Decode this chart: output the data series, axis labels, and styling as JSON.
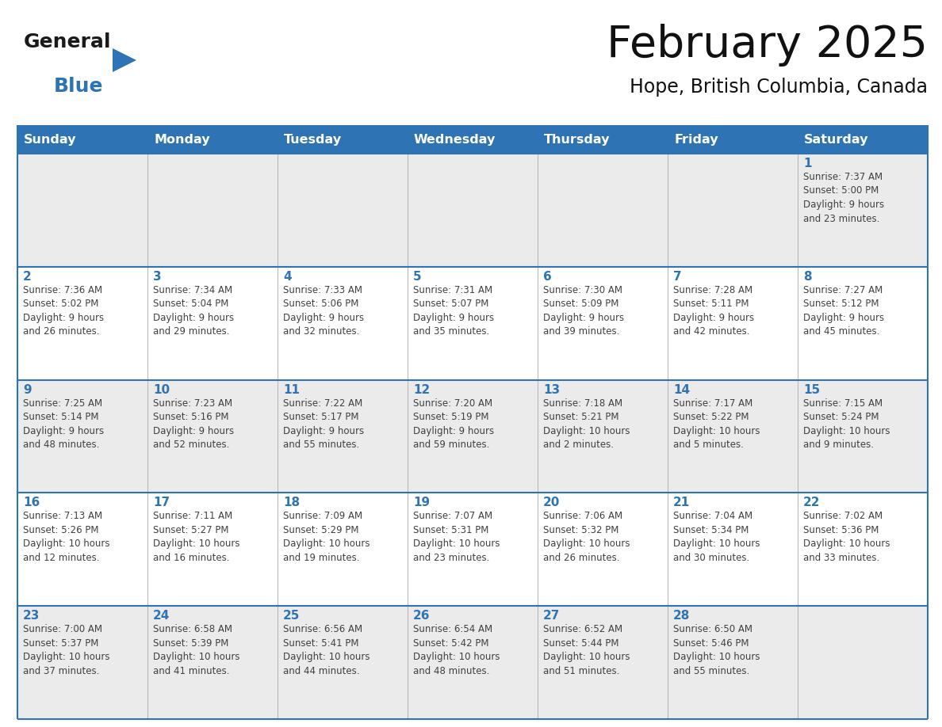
{
  "title": "February 2025",
  "subtitle": "Hope, British Columbia, Canada",
  "header_bg": "#2E74B5",
  "header_text_color": "#FFFFFF",
  "cell_bg_odd": "#EBEBEB",
  "cell_bg_even": "#FFFFFF",
  "cell_border_top": "#2E74B5",
  "cell_border_inner": "#CCCCCC",
  "day_number_color": "#2E74B5",
  "cell_text_color": "#404040",
  "days_of_week": [
    "Sunday",
    "Monday",
    "Tuesday",
    "Wednesday",
    "Thursday",
    "Friday",
    "Saturday"
  ],
  "weeks": [
    [
      {
        "day": null,
        "text": ""
      },
      {
        "day": null,
        "text": ""
      },
      {
        "day": null,
        "text": ""
      },
      {
        "day": null,
        "text": ""
      },
      {
        "day": null,
        "text": ""
      },
      {
        "day": null,
        "text": ""
      },
      {
        "day": 1,
        "text": "Sunrise: 7:37 AM\nSunset: 5:00 PM\nDaylight: 9 hours\nand 23 minutes."
      }
    ],
    [
      {
        "day": 2,
        "text": "Sunrise: 7:36 AM\nSunset: 5:02 PM\nDaylight: 9 hours\nand 26 minutes."
      },
      {
        "day": 3,
        "text": "Sunrise: 7:34 AM\nSunset: 5:04 PM\nDaylight: 9 hours\nand 29 minutes."
      },
      {
        "day": 4,
        "text": "Sunrise: 7:33 AM\nSunset: 5:06 PM\nDaylight: 9 hours\nand 32 minutes."
      },
      {
        "day": 5,
        "text": "Sunrise: 7:31 AM\nSunset: 5:07 PM\nDaylight: 9 hours\nand 35 minutes."
      },
      {
        "day": 6,
        "text": "Sunrise: 7:30 AM\nSunset: 5:09 PM\nDaylight: 9 hours\nand 39 minutes."
      },
      {
        "day": 7,
        "text": "Sunrise: 7:28 AM\nSunset: 5:11 PM\nDaylight: 9 hours\nand 42 minutes."
      },
      {
        "day": 8,
        "text": "Sunrise: 7:27 AM\nSunset: 5:12 PM\nDaylight: 9 hours\nand 45 minutes."
      }
    ],
    [
      {
        "day": 9,
        "text": "Sunrise: 7:25 AM\nSunset: 5:14 PM\nDaylight: 9 hours\nand 48 minutes."
      },
      {
        "day": 10,
        "text": "Sunrise: 7:23 AM\nSunset: 5:16 PM\nDaylight: 9 hours\nand 52 minutes."
      },
      {
        "day": 11,
        "text": "Sunrise: 7:22 AM\nSunset: 5:17 PM\nDaylight: 9 hours\nand 55 minutes."
      },
      {
        "day": 12,
        "text": "Sunrise: 7:20 AM\nSunset: 5:19 PM\nDaylight: 9 hours\nand 59 minutes."
      },
      {
        "day": 13,
        "text": "Sunrise: 7:18 AM\nSunset: 5:21 PM\nDaylight: 10 hours\nand 2 minutes."
      },
      {
        "day": 14,
        "text": "Sunrise: 7:17 AM\nSunset: 5:22 PM\nDaylight: 10 hours\nand 5 minutes."
      },
      {
        "day": 15,
        "text": "Sunrise: 7:15 AM\nSunset: 5:24 PM\nDaylight: 10 hours\nand 9 minutes."
      }
    ],
    [
      {
        "day": 16,
        "text": "Sunrise: 7:13 AM\nSunset: 5:26 PM\nDaylight: 10 hours\nand 12 minutes."
      },
      {
        "day": 17,
        "text": "Sunrise: 7:11 AM\nSunset: 5:27 PM\nDaylight: 10 hours\nand 16 minutes."
      },
      {
        "day": 18,
        "text": "Sunrise: 7:09 AM\nSunset: 5:29 PM\nDaylight: 10 hours\nand 19 minutes."
      },
      {
        "day": 19,
        "text": "Sunrise: 7:07 AM\nSunset: 5:31 PM\nDaylight: 10 hours\nand 23 minutes."
      },
      {
        "day": 20,
        "text": "Sunrise: 7:06 AM\nSunset: 5:32 PM\nDaylight: 10 hours\nand 26 minutes."
      },
      {
        "day": 21,
        "text": "Sunrise: 7:04 AM\nSunset: 5:34 PM\nDaylight: 10 hours\nand 30 minutes."
      },
      {
        "day": 22,
        "text": "Sunrise: 7:02 AM\nSunset: 5:36 PM\nDaylight: 10 hours\nand 33 minutes."
      }
    ],
    [
      {
        "day": 23,
        "text": "Sunrise: 7:00 AM\nSunset: 5:37 PM\nDaylight: 10 hours\nand 37 minutes."
      },
      {
        "day": 24,
        "text": "Sunrise: 6:58 AM\nSunset: 5:39 PM\nDaylight: 10 hours\nand 41 minutes."
      },
      {
        "day": 25,
        "text": "Sunrise: 6:56 AM\nSunset: 5:41 PM\nDaylight: 10 hours\nand 44 minutes."
      },
      {
        "day": 26,
        "text": "Sunrise: 6:54 AM\nSunset: 5:42 PM\nDaylight: 10 hours\nand 48 minutes."
      },
      {
        "day": 27,
        "text": "Sunrise: 6:52 AM\nSunset: 5:44 PM\nDaylight: 10 hours\nand 51 minutes."
      },
      {
        "day": 28,
        "text": "Sunrise: 6:50 AM\nSunset: 5:46 PM\nDaylight: 10 hours\nand 55 minutes."
      },
      {
        "day": null,
        "text": ""
      }
    ]
  ],
  "logo_text_general": "General",
  "logo_text_blue": "Blue",
  "logo_blue": "#2E74B5",
  "logo_dark": "#1A1A1A"
}
